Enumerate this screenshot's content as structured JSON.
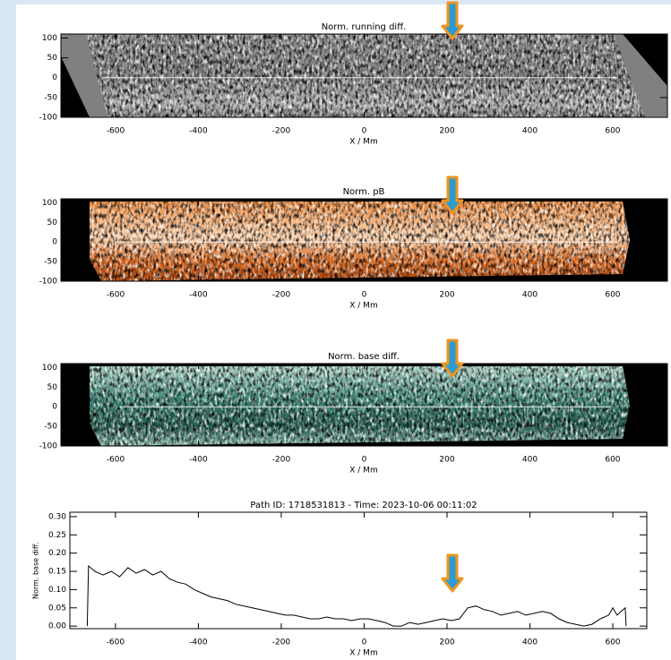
{
  "chart_data": [
    {
      "type": "heatmap",
      "title": "Norm. running diff.",
      "xlabel": "X / Mm",
      "colormap": "gray",
      "xlim": [
        -732,
        732
      ],
      "ylim": [
        -100,
        110
      ],
      "xticks": [
        -600,
        -400,
        -200,
        0,
        200,
        400,
        600
      ],
      "yticks": [
        100,
        50,
        0,
        -50,
        -100
      ],
      "path_x": [
        -630,
        612
      ],
      "path_y": [
        0,
        0
      ]
    },
    {
      "type": "heatmap",
      "title": "Norm. pB",
      "xlabel": "X / Mm",
      "colormap": "orange",
      "xlim": [
        -732,
        732
      ],
      "ylim": [
        -100,
        110
      ],
      "xticks": [
        -600,
        -400,
        -200,
        0,
        200,
        400,
        600
      ],
      "yticks": [
        100,
        50,
        0,
        -50,
        -100
      ],
      "path_x": [
        -600,
        612
      ],
      "path_y": [
        0,
        0
      ]
    },
    {
      "type": "heatmap",
      "title": "Norm. base diff.",
      "xlabel": "X / Mm",
      "colormap": "teal",
      "xlim": [
        -732,
        732
      ],
      "ylim": [
        -100,
        110
      ],
      "xticks": [
        -600,
        -400,
        -200,
        0,
        200,
        400,
        600
      ],
      "yticks": [
        100,
        50,
        0,
        -50,
        -100
      ],
      "path_x": [
        -590,
        595
      ],
      "path_y": [
        0,
        0
      ]
    },
    {
      "type": "line",
      "title": "Path ID: 1718531813 - Time: 2023-10-06 00:11:02",
      "xlabel": "X / Mm",
      "ylabel": "Norm. base diff.",
      "xlim": [
        -710,
        682
      ],
      "ylim": [
        -0.007,
        0.312
      ],
      "xticks": [
        -600,
        -400,
        -200,
        0,
        200,
        400,
        600
      ],
      "yticks": [
        {
          "value": 0,
          "label": "0.00"
        },
        {
          "value": 0.05,
          "label": "0.05"
        },
        {
          "value": 0.1,
          "label": "0.10"
        },
        {
          "value": 0.15,
          "label": "0.15"
        },
        {
          "value": 0.2,
          "label": "0.20"
        },
        {
          "value": 0.25,
          "label": "0.25"
        },
        {
          "value": 0.3,
          "label": "0.30"
        }
      ],
      "color": "#000000",
      "x": [
        -668,
        -665,
        -650,
        -630,
        -610,
        -590,
        -570,
        -550,
        -530,
        -510,
        -490,
        -470,
        -450,
        -430,
        -410,
        -390,
        -370,
        -350,
        -330,
        -310,
        -290,
        -270,
        -250,
        -230,
        -210,
        -190,
        -170,
        -150,
        -130,
        -110,
        -90,
        -70,
        -50,
        -30,
        -10,
        10,
        30,
        50,
        70,
        90,
        110,
        130,
        150,
        170,
        190,
        210,
        230,
        250,
        270,
        290,
        310,
        330,
        350,
        370,
        390,
        410,
        430,
        450,
        470,
        490,
        510,
        530,
        550,
        570,
        590,
        600,
        610,
        620,
        630,
        632
      ],
      "values": [
        0,
        0.165,
        0.15,
        0.14,
        0.15,
        0.135,
        0.16,
        0.145,
        0.155,
        0.14,
        0.15,
        0.13,
        0.12,
        0.115,
        0.1,
        0.09,
        0.08,
        0.075,
        0.07,
        0.06,
        0.055,
        0.05,
        0.045,
        0.04,
        0.035,
        0.03,
        0.03,
        0.025,
        0.02,
        0.02,
        0.025,
        0.02,
        0.02,
        0.015,
        0.02,
        0.02,
        0.015,
        0.01,
        0,
        0,
        0.01,
        0.005,
        0.01,
        0.015,
        0.02,
        0.015,
        0.02,
        0.05,
        0.055,
        0.045,
        0.04,
        0.03,
        0.035,
        0.04,
        0.03,
        0.035,
        0.04,
        0.035,
        0.02,
        0.01,
        0.005,
        0,
        0.005,
        0.02,
        0.03,
        0.05,
        0.03,
        0.04,
        0.05,
        0
      ]
    }
  ]
}
